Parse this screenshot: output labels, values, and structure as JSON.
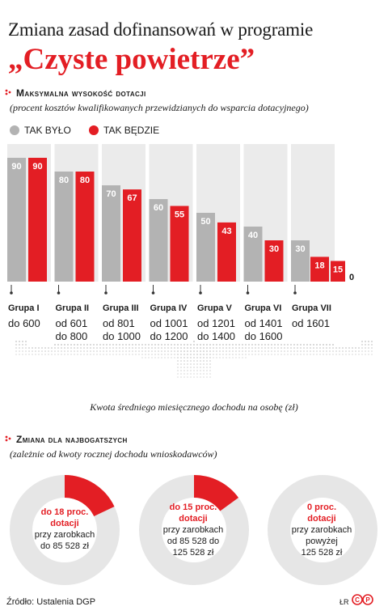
{
  "title": "Zmiana zasad dofinansowań w programie",
  "subtitle": "„Czyste powietrze”",
  "colors": {
    "gray": "#b3b3b3",
    "red": "#e31e24",
    "bg_column": "#ebebeb"
  },
  "section1": {
    "title": "Maksymalna wysokość dotacji",
    "note": "(procent kosztów kwalifikowanych przewidzianych do wsparcia dotacyjnego)"
  },
  "chart_data": {
    "type": "bar",
    "categories": [
      "Grupa I",
      "Grupa II",
      "Grupa III",
      "Grupa IV",
      "Grupa V",
      "Grupa VI",
      "Grupa VII"
    ],
    "category_ranges": [
      [
        "do 600"
      ],
      [
        "od 601",
        "do 800"
      ],
      [
        "od 801",
        "do 1000"
      ],
      [
        "od 1001",
        "do 1200"
      ],
      [
        "od 1201",
        "do 1400"
      ],
      [
        "od 1401",
        "do 1600"
      ],
      [
        "od 1601"
      ]
    ],
    "series": [
      {
        "name": "TAK BYŁO",
        "values": [
          90,
          80,
          70,
          60,
          50,
          40,
          30
        ]
      },
      {
        "name": "TAK BĘDZIE",
        "values": [
          90,
          80,
          67,
          55,
          43,
          30,
          null
        ]
      }
    ],
    "group7_tak_bedzie": [
      18,
      15,
      0
    ],
    "xlabel": "Kwota średniego miesięcznego dochodu na osobę (zł)",
    "ylim": [
      0,
      100
    ]
  },
  "section2": {
    "title": "Zmiana dla najbogatszych",
    "note": "(zależnie od kwoty rocznej dochodu wnioskodawców)",
    "donuts": [
      {
        "value": 18,
        "head1": "do 18 proc.",
        "head2": "dotacji",
        "l1": "przy zarobkach",
        "l2": "do 85 528 zł",
        "l3": ""
      },
      {
        "value": 15,
        "head1": "do 15 proc.",
        "head2": "dotacji",
        "l1": "przy zarobkach",
        "l2": "od 85 528 do",
        "l3": "125 528 zł"
      },
      {
        "value": 0,
        "head1": "0 proc.",
        "head2": "dotacji",
        "l1": "przy zarobkach",
        "l2": "powyżej",
        "l3": "125 528 zł"
      }
    ]
  },
  "source": "Źródło: Ustalenia DGP",
  "credit": "ŁR"
}
